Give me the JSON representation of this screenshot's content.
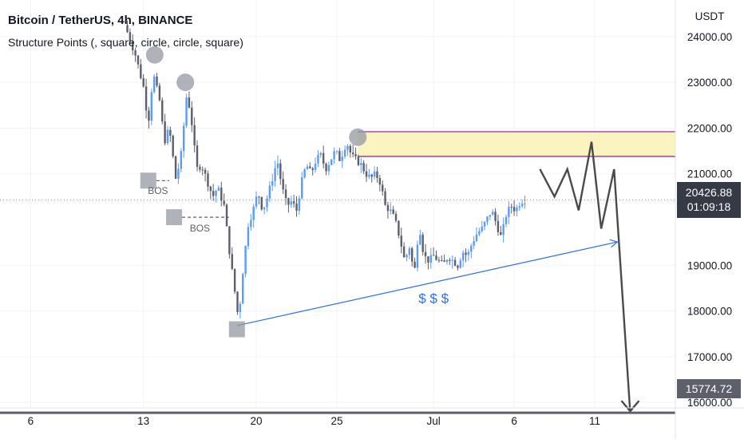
{
  "title": {
    "symbol": "Bitcoin / TetherUS, 4h, BINANCE",
    "indicator": "Structure Points (, square, circle, circle, square)"
  },
  "price_axis": {
    "currency": "USDT",
    "ticks": [
      {
        "value": 24000,
        "label": "24000.00"
      },
      {
        "value": 23000,
        "label": "23000.00"
      },
      {
        "value": 22000,
        "label": "22000.00"
      },
      {
        "value": 21000,
        "label": "21000.00"
      },
      {
        "value": 19000,
        "label": "19000.00"
      },
      {
        "value": 18000,
        "label": "18000.00"
      },
      {
        "value": 17000,
        "label": "17000.00"
      },
      {
        "value": 16000,
        "label": "16000.00"
      }
    ]
  },
  "time_axis": {
    "ticks": [
      {
        "day": 6,
        "label": "6"
      },
      {
        "day": 13,
        "label": "13"
      },
      {
        "day": 20,
        "label": "20"
      },
      {
        "day": 25,
        "label": "25"
      },
      {
        "day": 31,
        "label": "Jul"
      },
      {
        "day": 36,
        "label": "6"
      },
      {
        "day": 41,
        "label": "11"
      }
    ]
  },
  "current_price": {
    "value": 20426.88,
    "label": "20426.88",
    "countdown": "01:09:18",
    "color": "#363a45"
  },
  "support_level": {
    "value": 15774.72,
    "label": "15774.72",
    "color": "#5d606b"
  },
  "colors": {
    "candle_up": "#5b9cf6",
    "candle_down": "#5d606b",
    "trendline": "#2f6fde",
    "zone_fill": "#fbf3c0",
    "zone_border": "#9c27b0",
    "marker": "#9598a1",
    "projection": "#4a4a4a"
  },
  "chart_data": {
    "type": "candlestick",
    "title": "Bitcoin / TetherUS, 4h, BINANCE",
    "x_unit": "day (June 2022; days above 30 are July)",
    "ylim": [
      15200,
      24800
    ],
    "xlim": [
      4.1,
      46
    ],
    "close_path": [
      [
        12.0,
        24100
      ],
      [
        12.5,
        23600
      ],
      [
        13.0,
        22900
      ],
      [
        13.3,
        22100
      ],
      [
        13.6,
        23200
      ],
      [
        14.0,
        22600
      ],
      [
        14.3,
        21700
      ],
      [
        14.6,
        22000
      ],
      [
        15.0,
        20900
      ],
      [
        15.3,
        21300
      ],
      [
        15.7,
        22800
      ],
      [
        16.0,
        22100
      ],
      [
        16.3,
        21100
      ],
      [
        16.6,
        21200
      ],
      [
        17.0,
        20800
      ],
      [
        17.3,
        20500
      ],
      [
        17.6,
        20700
      ],
      [
        18.0,
        20300
      ],
      [
        18.3,
        19400
      ],
      [
        18.6,
        18600
      ],
      [
        18.9,
        17800
      ],
      [
        19.2,
        19000
      ],
      [
        19.5,
        19900
      ],
      [
        19.8,
        20200
      ],
      [
        20.1,
        20600
      ],
      [
        20.4,
        20200
      ],
      [
        20.7,
        20500
      ],
      [
        21.0,
        20900
      ],
      [
        21.3,
        21300
      ],
      [
        21.6,
        20700
      ],
      [
        21.9,
        20300
      ],
      [
        22.2,
        20400
      ],
      [
        22.5,
        20200
      ],
      [
        22.8,
        20800
      ],
      [
        23.1,
        21200
      ],
      [
        23.4,
        21000
      ],
      [
        23.7,
        21300
      ],
      [
        24.0,
        21400
      ],
      [
        24.3,
        21100
      ],
      [
        24.6,
        21300
      ],
      [
        24.9,
        21500
      ],
      [
        25.2,
        21300
      ],
      [
        25.6,
        21700
      ],
      [
        25.9,
        21400
      ],
      [
        26.2,
        21300
      ],
      [
        26.5,
        21200
      ],
      [
        26.8,
        21000
      ],
      [
        27.1,
        20900
      ],
      [
        27.4,
        21000
      ],
      [
        27.7,
        20800
      ],
      [
        28.0,
        20300
      ],
      [
        28.3,
        20200
      ],
      [
        28.6,
        20000
      ],
      [
        28.9,
        19600
      ],
      [
        29.2,
        19100
      ],
      [
        29.5,
        19400
      ],
      [
        29.8,
        18800
      ],
      [
        30.1,
        19900
      ],
      [
        30.4,
        19200
      ],
      [
        30.7,
        19100
      ],
      [
        31.0,
        19200
      ],
      [
        31.3,
        19100
      ],
      [
        31.6,
        19000
      ],
      [
        31.9,
        19200
      ],
      [
        32.2,
        19100
      ],
      [
        32.5,
        19000
      ],
      [
        32.8,
        19300
      ],
      [
        33.1,
        19200
      ],
      [
        33.4,
        19500
      ],
      [
        33.7,
        19700
      ],
      [
        34.0,
        19800
      ],
      [
        34.3,
        20000
      ],
      [
        34.6,
        20200
      ],
      [
        34.9,
        19900
      ],
      [
        35.2,
        19600
      ],
      [
        35.5,
        20100
      ],
      [
        35.8,
        20300
      ],
      [
        36.1,
        20200
      ],
      [
        36.4,
        20400
      ],
      [
        36.7,
        20430
      ]
    ],
    "resistance_zone": {
      "low": 21380,
      "high": 21920
    },
    "trendline": {
      "start": [
        18.8,
        17680
      ],
      "end": [
        42.4,
        19510
      ]
    },
    "structure_points": [
      {
        "shape": "circle",
        "x": 13.7,
        "y": 23600
      },
      {
        "shape": "circle",
        "x": 15.6,
        "y": 23000
      },
      {
        "shape": "circle",
        "x": 26.3,
        "y": 21800
      },
      {
        "shape": "square",
        "x": 13.3,
        "y": 20850
      },
      {
        "shape": "square",
        "x": 14.9,
        "y": 20050
      },
      {
        "shape": "square",
        "x": 18.8,
        "y": 17600
      }
    ],
    "bos_labels": [
      {
        "text": "BOS",
        "x": 13.9,
        "y": 20560
      },
      {
        "text": "BOS",
        "x": 16.5,
        "y": 19740
      }
    ],
    "liquidity_label": {
      "text": "$ $ $",
      "x": 31.0,
      "y": 18180
    },
    "projection_path": [
      [
        37.6,
        21100
      ],
      [
        38.5,
        20500
      ],
      [
        39.3,
        21100
      ],
      [
        40.0,
        20200
      ],
      [
        40.8,
        21700
      ],
      [
        41.4,
        19800
      ],
      [
        42.2,
        21100
      ],
      [
        43.2,
        15774
      ]
    ]
  }
}
